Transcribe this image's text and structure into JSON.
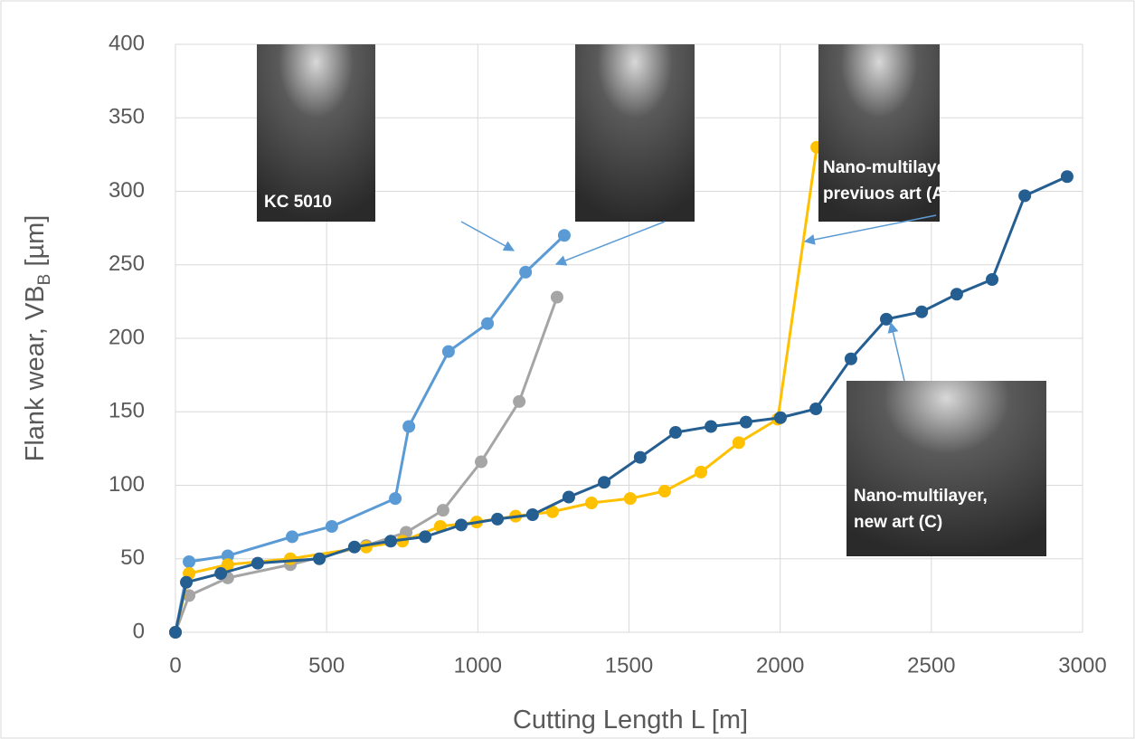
{
  "chart_data": {
    "type": "line",
    "x_label": "Cutting Length L [m]",
    "y_label": {
      "main": "Flank wear, VB",
      "subscript": "B",
      "unit": " [µm]"
    },
    "xlim": [
      0,
      3000
    ],
    "xticks": [
      0,
      500,
      1000,
      1500,
      2000,
      2500,
      3000
    ],
    "ylim": [
      0,
      400
    ],
    "yticks": [
      0,
      50,
      100,
      150,
      200,
      250,
      300,
      350,
      400
    ],
    "grid": true,
    "series": [
      {
        "color": "#5b9bd5",
        "x": [
          0,
          45,
          173,
          386,
          517,
          727,
          772,
          903,
          1032,
          1158,
          1286
        ],
        "values": [
          0,
          48,
          52,
          65,
          72,
          91,
          140,
          191,
          210,
          245,
          270
        ]
      },
      {
        "color": "#a5a5a5",
        "x": [
          0,
          45,
          173,
          380,
          631,
          763,
          885,
          1011,
          1137,
          1262
        ],
        "values": [
          0,
          25,
          37,
          46,
          59,
          68,
          83,
          116,
          157,
          228
        ]
      },
      {
        "color": "#ffc000",
        "x": [
          0,
          45,
          173,
          380,
          631,
          751,
          876,
          996,
          1125,
          1247,
          1376,
          1504,
          1618,
          1738,
          1863,
          1992,
          2121
        ],
        "values": [
          0,
          40,
          46,
          50,
          58,
          62,
          72,
          75,
          79,
          82,
          88,
          91,
          96,
          109,
          129,
          145,
          330
        ]
      },
      {
        "color": "#255e91",
        "x": [
          0,
          36,
          150,
          272,
          476,
          592,
          712,
          826,
          945,
          1065,
          1181,
          1301,
          1418,
          1537,
          1654,
          1771,
          1887,
          2001,
          2118,
          2234,
          2351,
          2468,
          2584,
          2701,
          2809,
          2949
        ],
        "values": [
          0,
          34,
          40,
          47,
          50,
          58,
          62,
          65,
          73,
          77,
          80,
          92,
          102,
          119,
          136,
          140,
          143,
          146,
          152,
          186,
          213,
          218,
          230,
          240,
          297,
          310
        ]
      }
    ],
    "annotations": [
      "KC 5010",
      "Nano-multilayer,",
      "previuos art (A)",
      "Nano-multilayer,",
      "new art (C)"
    ]
  }
}
